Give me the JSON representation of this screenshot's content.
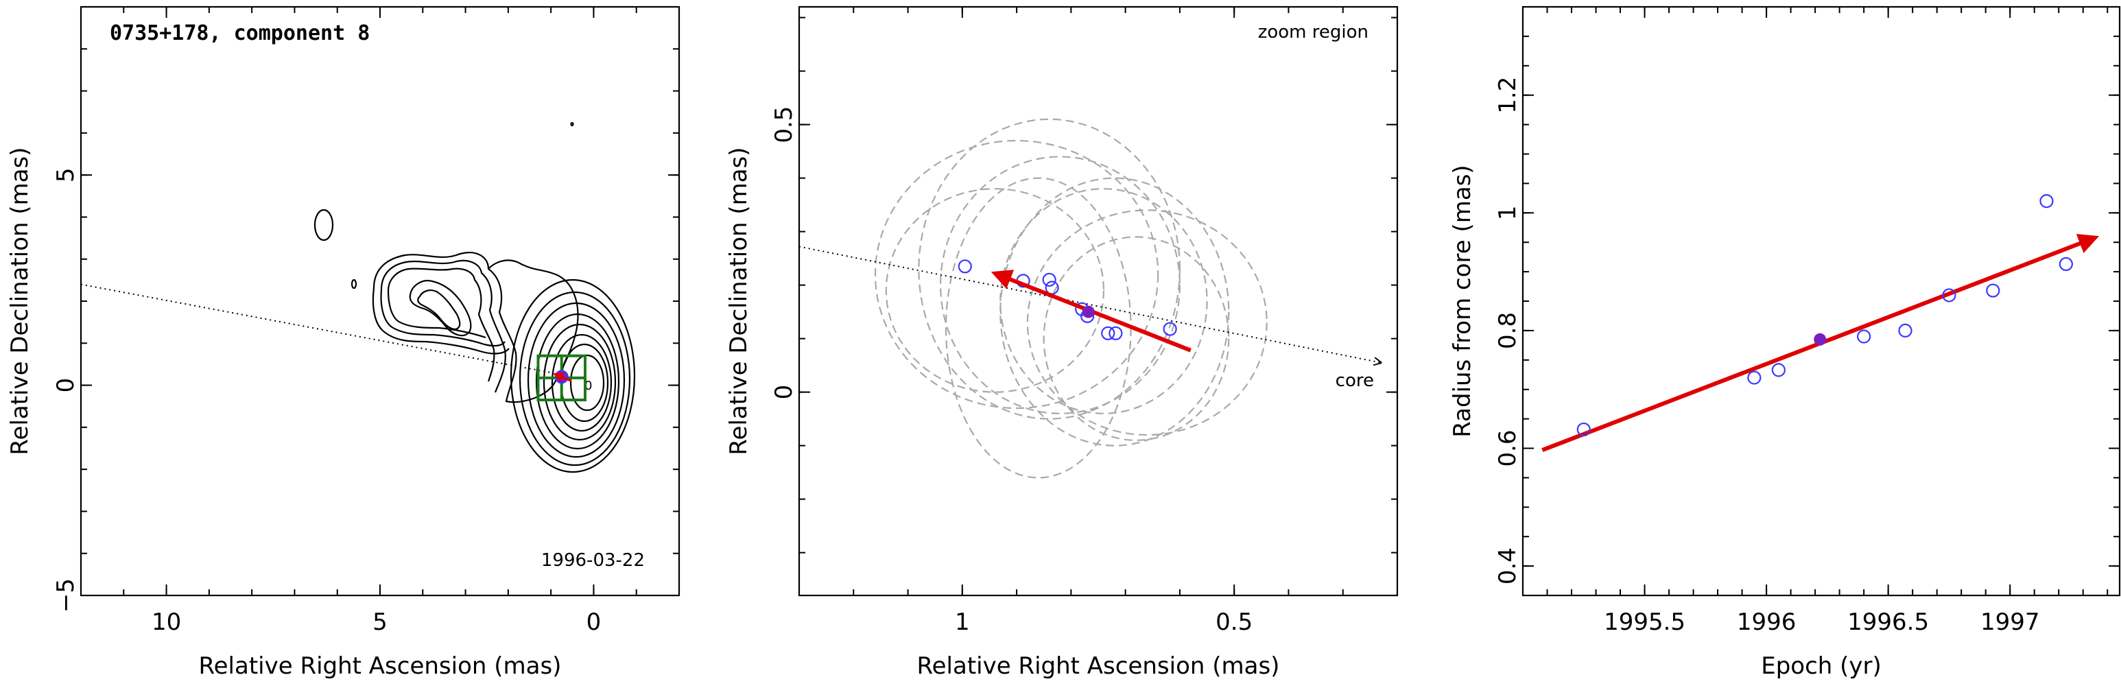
{
  "chart_data": [
    {
      "type": "contour",
      "title": "0735+178, component 8",
      "epoch_label": "1996-03-22",
      "xlabel": "Relative Right Ascension (mas)",
      "ylabel": "Relative Declination (mas)",
      "xlim": [
        12,
        -2
      ],
      "ylim": [
        -5,
        9
      ],
      "xticks": [
        {
          "value": 10,
          "label": "10"
        },
        {
          "value": 5,
          "label": "5"
        },
        {
          "value": 0,
          "label": "0"
        }
      ],
      "yticks": [
        {
          "value": -5,
          "label": "−5"
        },
        {
          "value": 0,
          "label": "0"
        },
        {
          "value": 5,
          "label": "5"
        }
      ],
      "jet_direction_line": [
        [
          12,
          2.4
        ],
        [
          1.0,
          0.3
        ]
      ],
      "zoom_box": {
        "ra": [
          1.3,
          0.2
        ],
        "dec": [
          -0.35,
          0.7
        ]
      },
      "component_marker": {
        "ra": 0.75,
        "dec": 0.2
      },
      "core_marker": {
        "ra": 0.0,
        "dec": 0.0,
        "label": "0"
      },
      "colors": {
        "contour": "#000000",
        "zoom_box": "#1a7a1a",
        "marker": "#7a1fbf",
        "arrow": "#e00000"
      }
    },
    {
      "type": "scatter",
      "annotation": "zoom region",
      "core_label": "core",
      "xlabel": "Relative Right Ascension (mas)",
      "ylabel": "Relative Declination (mas)",
      "xlim": [
        1.3,
        0.2
      ],
      "ylim": [
        -0.38,
        0.72
      ],
      "xticks": [
        {
          "value": 1.0,
          "label": "1"
        },
        {
          "value": 0.5,
          "label": "0.5"
        }
      ],
      "yticks": [
        {
          "value": 0.0,
          "label": "0"
        },
        {
          "value": 0.5,
          "label": "0.5"
        }
      ],
      "positions": [
        {
          "ra": 0.995,
          "dec": 0.235
        },
        {
          "ra": 0.888,
          "dec": 0.208
        },
        {
          "ra": 0.84,
          "dec": 0.21
        },
        {
          "ra": 0.835,
          "dec": 0.195
        },
        {
          "ra": 0.78,
          "dec": 0.155
        },
        {
          "ra": 0.77,
          "dec": 0.142
        },
        {
          "ra": 0.732,
          "dec": 0.11
        },
        {
          "ra": 0.718,
          "dec": 0.11
        },
        {
          "ra": 0.618,
          "dec": 0.118
        }
      ],
      "highlight": {
        "ra": 0.768,
        "dec": 0.15
      },
      "fit_arrow": {
        "from": [
          0.58,
          0.078
        ],
        "to": [
          0.94,
          0.222
        ]
      },
      "direction_line": {
        "from": [
          1.3,
          0.272
        ],
        "to": [
          0.23,
          0.055
        ]
      },
      "component_sizes": [
        {
          "ra": 0.84,
          "dec": 0.23,
          "rx": 0.24,
          "ry": 0.28
        },
        {
          "ra": 0.82,
          "dec": 0.2,
          "rx": 0.22,
          "ry": 0.24
        },
        {
          "ra": 0.9,
          "dec": 0.22,
          "rx": 0.26,
          "ry": 0.25
        },
        {
          "ra": 0.72,
          "dec": 0.15,
          "rx": 0.21,
          "ry": 0.25
        },
        {
          "ra": 0.74,
          "dec": 0.17,
          "rx": 0.19,
          "ry": 0.21
        },
        {
          "ra": 0.66,
          "dec": 0.13,
          "rx": 0.22,
          "ry": 0.21
        },
        {
          "ra": 0.68,
          "dec": 0.1,
          "rx": 0.17,
          "ry": 0.19
        },
        {
          "ra": 0.86,
          "dec": 0.12,
          "rx": 0.17,
          "ry": 0.28
        },
        {
          "ra": 0.94,
          "dec": 0.19,
          "rx": 0.2,
          "ry": 0.19
        }
      ],
      "colors": {
        "points": "#3a3aff",
        "highlight": "#7a1fbf",
        "arrow": "#e00000",
        "ellipses": "#a9a9a9"
      }
    },
    {
      "type": "scatter",
      "xlabel": "Epoch (yr)",
      "ylabel": "Radius from core (mas)",
      "xlim": [
        1995.0,
        1997.45
      ],
      "ylim": [
        0.35,
        1.35
      ],
      "xticks": [
        {
          "value": 1995.5,
          "label": "1995.5"
        },
        {
          "value": 1996.0,
          "label": "1996"
        },
        {
          "value": 1996.5,
          "label": "1996.5"
        },
        {
          "value": 1997.0,
          "label": "1997"
        }
      ],
      "yticks": [
        {
          "value": 0.4,
          "label": "0.4"
        },
        {
          "value": 0.6,
          "label": "0.6"
        },
        {
          "value": 0.8,
          "label": "0.8"
        },
        {
          "value": 1.0,
          "label": "1"
        },
        {
          "value": 1.2,
          "label": "1.2"
        }
      ],
      "points": [
        {
          "x": 1995.25,
          "y": 0.632
        },
        {
          "x": 1995.95,
          "y": 0.72
        },
        {
          "x": 1996.05,
          "y": 0.733
        },
        {
          "x": 1996.4,
          "y": 0.79
        },
        {
          "x": 1996.57,
          "y": 0.8
        },
        {
          "x": 1996.75,
          "y": 0.86
        },
        {
          "x": 1996.93,
          "y": 0.868
        },
        {
          "x": 1997.15,
          "y": 1.02
        },
        {
          "x": 1997.23,
          "y": 0.913
        }
      ],
      "highlight": {
        "x": 1996.22,
        "y": 0.785
      },
      "fit_line": {
        "from": [
          1995.08,
          0.597
        ],
        "to": [
          1997.35,
          0.958
        ]
      },
      "colors": {
        "points": "#3a3aff",
        "highlight": "#7a1fbf",
        "fit": "#e00000"
      }
    }
  ]
}
